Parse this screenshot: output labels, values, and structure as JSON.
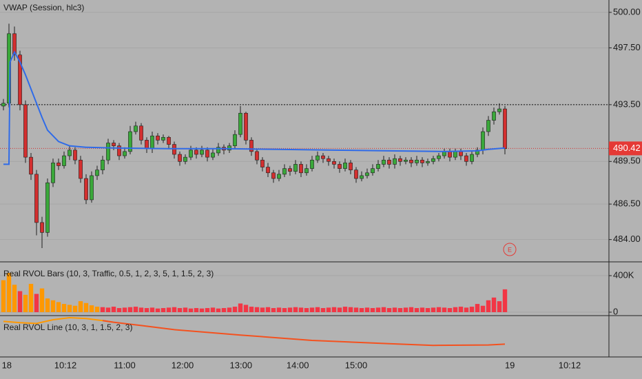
{
  "chart_data": [
    {
      "type": "candlestick",
      "title": "VWAP (Session, hlc3)",
      "xlim": [
        -0.625,
        109.875
      ],
      "xticks": [
        {
          "value": 0.6,
          "label": "18"
        },
        {
          "value": 11.25,
          "label": "10:12"
        },
        {
          "value": 22,
          "label": "11:00"
        },
        {
          "value": 32.5,
          "label": "12:00"
        },
        {
          "value": 43.1,
          "label": "13:00"
        },
        {
          "value": 53.4,
          "label": "14:00"
        },
        {
          "value": 64,
          "label": "15:00"
        },
        {
          "value": 91.9,
          "label": "19"
        },
        {
          "value": 102.75,
          "label": "10:12"
        }
      ],
      "ylim": [
        482.43,
        500.87
      ],
      "yticks": [
        {
          "value": 500,
          "label": "500.00"
        },
        {
          "value": 497.5,
          "label": "497.50"
        },
        {
          "value": 493.5,
          "label": "493.50"
        },
        {
          "value": 489.5,
          "label": "489.50"
        },
        {
          "value": 486.5,
          "label": "486.50"
        },
        {
          "value": 484,
          "label": "484.00"
        }
      ],
      "grid": true,
      "up_color": "#3aa83a",
      "down_color": "#d32f2f",
      "open": [
        493.4,
        493.6,
        498.5,
        497.0,
        493.5,
        489.8,
        488.6,
        485.2,
        484.5,
        488.0,
        489.4,
        489.2,
        489.9,
        490.3,
        489.6,
        488.3,
        486.8,
        488.5,
        488.9,
        489.6,
        490.8,
        490.6,
        489.9,
        490.2,
        491.6,
        492.0,
        491.0,
        490.4,
        491.3,
        491.0,
        491.2,
        490.7,
        490.0,
        489.5,
        489.8,
        490.3,
        490.0,
        490.3,
        489.8,
        490.1,
        490.5,
        490.3,
        490.6,
        491.4,
        492.9,
        491.0,
        490.2,
        489.6,
        489.1,
        488.7,
        488.3,
        488.6,
        489.0,
        488.8,
        489.3,
        488.7,
        489.0,
        489.6,
        489.9,
        489.7,
        489.5,
        489.3,
        489.0,
        489.4,
        488.9,
        488.3,
        488.5,
        488.7,
        489.0,
        489.3,
        489.6,
        489.3,
        489.7,
        489.5,
        489.6,
        489.4,
        489.6,
        489.4,
        489.5,
        489.7,
        489.9,
        490.2,
        489.8,
        490.2,
        489.9,
        489.5,
        490.0,
        490.3,
        491.6,
        492.4,
        493.0,
        493.2
      ],
      "high": [
        493.9,
        499.2,
        499.0,
        497.3,
        493.8,
        490.1,
        488.9,
        485.6,
        488.3,
        489.7,
        489.7,
        490.2,
        490.6,
        490.5,
        489.9,
        488.6,
        488.8,
        489.2,
        489.9,
        491.1,
        491.0,
        490.8,
        490.5,
        492.0,
        492.3,
        492.2,
        491.2,
        491.6,
        491.5,
        491.4,
        491.3,
        490.9,
        490.2,
        490.0,
        490.6,
        490.5,
        490.6,
        490.5,
        490.4,
        490.8,
        490.7,
        490.8,
        491.7,
        493.4,
        493.0,
        491.2,
        490.4,
        489.8,
        489.4,
        488.9,
        488.9,
        489.3,
        489.2,
        489.6,
        489.5,
        489.3,
        489.9,
        490.2,
        490.1,
        489.9,
        489.7,
        489.5,
        489.7,
        489.6,
        489.1,
        488.8,
        489.0,
        489.3,
        489.6,
        489.9,
        489.8,
        490.0,
        489.9,
        489.8,
        489.8,
        489.9,
        489.8,
        489.7,
        489.9,
        490.1,
        490.4,
        490.4,
        490.4,
        490.4,
        490.1,
        490.2,
        490.5,
        491.9,
        492.7,
        493.3,
        493.6,
        493.4
      ],
      "low": [
        493.1,
        493.3,
        496.6,
        493.1,
        489.4,
        488.2,
        484.3,
        483.4,
        484.2,
        487.7,
        488.9,
        489.0,
        489.6,
        489.3,
        488.0,
        486.5,
        486.6,
        488.2,
        488.6,
        489.3,
        490.3,
        489.6,
        489.7,
        490.0,
        491.4,
        490.7,
        490.1,
        490.1,
        490.7,
        490.8,
        490.4,
        489.7,
        489.2,
        489.3,
        489.6,
        489.7,
        489.8,
        489.5,
        489.6,
        489.9,
        490.0,
        490.1,
        490.4,
        491.2,
        490.7,
        489.9,
        489.3,
        488.8,
        488.4,
        488.0,
        488.1,
        488.4,
        488.5,
        488.6,
        488.4,
        488.5,
        488.8,
        489.4,
        489.4,
        489.2,
        489.0,
        488.7,
        488.8,
        488.6,
        488.0,
        488.1,
        488.3,
        488.5,
        488.8,
        489.1,
        489.0,
        489.0,
        489.2,
        489.3,
        489.1,
        489.2,
        489.1,
        489.2,
        489.3,
        489.5,
        489.7,
        489.5,
        489.6,
        489.6,
        489.2,
        489.3,
        489.8,
        490.0,
        491.3,
        492.1,
        492.8,
        490.0
      ],
      "close": [
        493.6,
        498.5,
        497.0,
        493.5,
        489.8,
        488.6,
        485.2,
        484.5,
        488.0,
        489.4,
        489.2,
        489.9,
        490.3,
        489.6,
        488.3,
        486.8,
        488.5,
        488.9,
        489.6,
        490.8,
        490.6,
        489.9,
        490.2,
        491.6,
        492.0,
        491.0,
        490.4,
        491.3,
        491.0,
        491.2,
        490.7,
        490.0,
        489.5,
        489.8,
        490.3,
        490.0,
        490.3,
        489.8,
        490.1,
        490.5,
        490.3,
        490.6,
        491.4,
        492.9,
        491.0,
        490.2,
        489.6,
        489.1,
        488.7,
        488.3,
        488.6,
        489.0,
        488.8,
        489.3,
        488.7,
        489.0,
        489.6,
        489.9,
        489.7,
        489.5,
        489.3,
        489.0,
        489.4,
        488.9,
        488.3,
        488.5,
        488.7,
        489.0,
        489.3,
        489.6,
        489.3,
        489.7,
        489.5,
        489.6,
        489.4,
        489.6,
        489.4,
        489.5,
        489.7,
        489.9,
        490.2,
        489.8,
        490.2,
        489.9,
        489.5,
        490.0,
        490.3,
        491.6,
        492.4,
        493.0,
        493.2,
        490.4
      ],
      "vwap": {
        "color": "#2f6be8",
        "x": [
          0,
          1,
          1.2,
          2,
          3,
          4,
          5,
          6,
          7,
          8,
          10,
          12,
          15,
          20,
          30,
          40,
          50,
          60,
          70,
          80,
          86,
          88,
          91
        ],
        "values": [
          489.3,
          489.3,
          496.5,
          497.2,
          496.5,
          495.6,
          494.6,
          493.6,
          492.6,
          491.7,
          490.9,
          490.6,
          490.5,
          490.45,
          490.4,
          490.4,
          490.35,
          490.3,
          490.25,
          490.2,
          490.25,
          490.35,
          490.45
        ]
      },
      "reference_line": 493.5,
      "last_price": {
        "value": 490.42,
        "label": "490.42"
      },
      "earnings_marker": "E"
    },
    {
      "type": "bar",
      "title": "Real RVOL Bars (10, 3, Traffic, 0.5, 1, 2, 3, 5, 1, 1.5, 2, 3)",
      "ylim": [
        -37700,
        551000
      ],
      "yticks": [
        {
          "value": 400000,
          "label": "400K"
        },
        0
      ],
      "values": [
        350000,
        430000,
        300000,
        230000,
        190000,
        310000,
        200000,
        260000,
        150000,
        130000,
        110000,
        90000,
        80000,
        70000,
        120000,
        100000,
        75000,
        60000,
        55000,
        50000,
        60000,
        45000,
        50000,
        55000,
        60000,
        50000,
        45000,
        50000,
        40000,
        45000,
        50000,
        55000,
        45000,
        50000,
        40000,
        45000,
        40000,
        45000,
        50000,
        40000,
        45000,
        50000,
        60000,
        95000,
        80000,
        60000,
        55000,
        50000,
        55000,
        45000,
        50000,
        45000,
        50000,
        55000,
        50000,
        45000,
        50000,
        55000,
        45000,
        50000,
        55000,
        50000,
        60000,
        55000,
        50000,
        45000,
        50000,
        45000,
        50000,
        55000,
        45000,
        50000,
        45000,
        50000,
        55000,
        45000,
        50000,
        45000,
        50000,
        55000,
        50000,
        45000,
        55000,
        60000,
        50000,
        60000,
        90000,
        70000,
        130000,
        160000,
        120000,
        250000
      ],
      "colors": [
        "#ff9800",
        "#ff9800",
        "#ff9800",
        "#f23645",
        "#ff9800",
        "#ff9800",
        "#f23645",
        "#ff9800",
        "#ff9800",
        "#ff9800",
        "#ff9800",
        "#ff9800",
        "#ff9800",
        "#ff9800",
        "#ff9800",
        "#ff9800",
        "#ff9800",
        "#ff9800",
        "#f23645",
        "#f23645",
        "#f23645",
        "#f23645",
        "#f23645",
        "#f23645",
        "#f23645",
        "#f23645",
        "#f23645",
        "#f23645",
        "#f23645",
        "#f23645",
        "#f23645",
        "#f23645",
        "#f23645",
        "#f23645",
        "#f23645",
        "#f23645",
        "#f23645",
        "#f23645",
        "#f23645",
        "#f23645",
        "#f23645",
        "#f23645",
        "#f23645",
        "#f23645",
        "#f23645",
        "#f23645",
        "#f23645",
        "#f23645",
        "#f23645",
        "#f23645",
        "#f23645",
        "#f23645",
        "#f23645",
        "#f23645",
        "#f23645",
        "#f23645",
        "#f23645",
        "#f23645",
        "#f23645",
        "#f23645",
        "#f23645",
        "#f23645",
        "#f23645",
        "#f23645",
        "#f23645",
        "#f23645",
        "#f23645",
        "#f23645",
        "#f23645",
        "#f23645",
        "#f23645",
        "#f23645",
        "#f23645",
        "#f23645",
        "#f23645",
        "#f23645",
        "#f23645",
        "#f23645",
        "#f23645",
        "#f23645",
        "#f23645",
        "#f23645",
        "#f23645",
        "#f23645",
        "#f23645",
        "#f23645",
        "#f23645",
        "#f23645",
        "#f23645",
        "#f23645",
        "#f23645",
        "#f23645"
      ]
    },
    {
      "type": "line",
      "title": "Real RVOL Line (10, 3, 1, 1.5, 2, 3)",
      "ylim": [
        0,
        100
      ],
      "series": [
        {
          "color": "#ff9800",
          "x": [
            0,
            3,
            6,
            9,
            12,
            15,
            18,
            20
          ],
          "values": [
            86,
            83,
            81,
            90,
            95,
            93,
            88,
            84
          ]
        },
        {
          "color": "#f4511e",
          "x": [
            18,
            20,
            25,
            31,
            43,
            56,
            70,
            78,
            88,
            91
          ],
          "values": [
            88,
            84,
            76,
            66,
            53,
            40,
            32,
            28,
            29,
            31
          ]
        }
      ]
    }
  ]
}
